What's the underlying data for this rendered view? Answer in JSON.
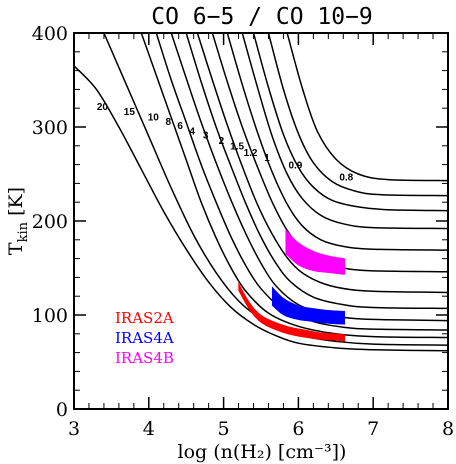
{
  "chart_data": {
    "type": "line",
    "title": "CO 6−5 / CO 10−9",
    "xlabel": "log (n(H₂) [cm⁻³])",
    "ylabel": "T_kin [K]",
    "ylabel_main": "T",
    "ylabel_sub": "kin",
    "ylabel_unit": " [K]",
    "xlim": [
      3,
      8
    ],
    "ylim": [
      0,
      400
    ],
    "xticks": [
      3,
      4,
      5,
      6,
      7,
      8
    ],
    "yticks": [
      0,
      100,
      200,
      300,
      400
    ],
    "grid": false,
    "legend_position": "bottom-left",
    "series": [
      {
        "label": "20",
        "x": [
          3.0,
          3.3,
          3.6,
          3.9,
          4.2,
          4.5,
          4.8,
          5.1,
          5.4,
          5.7,
          6.0,
          6.5,
          7.0,
          8.0
        ],
        "y": [
          365,
          340,
          300,
          255,
          210,
          170,
          135,
          108,
          90,
          78,
          70,
          65,
          63,
          62
        ]
      },
      {
        "label": "15",
        "x": [
          3.4,
          3.7,
          4.0,
          4.3,
          4.6,
          4.9,
          5.2,
          5.5,
          5.8,
          6.1,
          6.5,
          7.0,
          8.0
        ],
        "y": [
          400,
          345,
          290,
          235,
          185,
          145,
          115,
          96,
          84,
          77,
          72,
          69,
          68
        ]
      },
      {
        "label": "10",
        "x": [
          3.9,
          4.1,
          4.3,
          4.5,
          4.7,
          4.9,
          5.1,
          5.3,
          5.6,
          6.0,
          6.5,
          7.0,
          8.0
        ],
        "y": [
          400,
          355,
          310,
          265,
          220,
          182,
          150,
          125,
          102,
          88,
          80,
          77,
          76
        ]
      },
      {
        "label": "8",
        "x": [
          4.1,
          4.3,
          4.5,
          4.7,
          4.9,
          5.1,
          5.3,
          5.5,
          5.8,
          6.2,
          6.6,
          7.0,
          8.0
        ],
        "y": [
          400,
          350,
          305,
          260,
          220,
          183,
          152,
          128,
          106,
          93,
          87,
          85,
          84
        ]
      },
      {
        "label": "6",
        "x": [
          4.3,
          4.5,
          4.7,
          4.9,
          5.1,
          5.3,
          5.5,
          5.7,
          6.0,
          6.4,
          6.8,
          7.2,
          8.0
        ],
        "y": [
          400,
          352,
          305,
          262,
          222,
          186,
          155,
          131,
          111,
          100,
          96,
          95,
          94
        ]
      },
      {
        "label": "4",
        "x": [
          4.5,
          4.7,
          4.9,
          5.1,
          5.3,
          5.5,
          5.7,
          5.9,
          6.2,
          6.6,
          7.0,
          8.0
        ],
        "y": [
          400,
          348,
          300,
          258,
          218,
          183,
          155,
          135,
          119,
          111,
          108,
          107
        ]
      },
      {
        "label": "3",
        "x": [
          4.65,
          4.85,
          5.05,
          5.25,
          5.45,
          5.65,
          5.85,
          6.05,
          6.35,
          6.7,
          7.1,
          8.0
        ],
        "y": [
          400,
          350,
          302,
          258,
          218,
          186,
          161,
          145,
          133,
          127,
          125,
          124
        ]
      },
      {
        "label": "2",
        "x": [
          4.85,
          5.05,
          5.25,
          5.45,
          5.65,
          5.85,
          6.05,
          6.3,
          6.6,
          7.0,
          8.0
        ],
        "y": [
          400,
          348,
          300,
          258,
          220,
          190,
          170,
          157,
          150,
          147,
          146
        ]
      },
      {
        "label": "1.5",
        "x": [
          5.05,
          5.25,
          5.45,
          5.65,
          5.85,
          6.05,
          6.3,
          6.6,
          7.0,
          8.0
        ],
        "y": [
          400,
          345,
          295,
          252,
          218,
          195,
          180,
          173,
          170,
          169
        ]
      },
      {
        "label": "1.2",
        "x": [
          5.25,
          5.45,
          5.65,
          5.85,
          6.05,
          6.3,
          6.6,
          7.0,
          8.0
        ],
        "y": [
          400,
          343,
          290,
          250,
          224,
          206,
          197,
          193,
          192
        ]
      },
      {
        "label": "1",
        "x": [
          5.4,
          5.6,
          5.8,
          6.0,
          6.2,
          6.45,
          6.8,
          7.2,
          8.0
        ],
        "y": [
          400,
          342,
          292,
          257,
          236,
          222,
          215,
          212,
          211
        ]
      },
      {
        "label": "0.9",
        "x": [
          5.6,
          5.8,
          6.0,
          6.2,
          6.45,
          6.75,
          7.1,
          8.0
        ],
        "y": [
          400,
          340,
          293,
          262,
          242,
          232,
          228,
          227
        ]
      },
      {
        "label": "0.8",
        "x": [
          5.85,
          6.05,
          6.25,
          6.5,
          6.8,
          7.2,
          8.0
        ],
        "y": [
          400,
          342,
          296,
          266,
          250,
          244,
          243
        ]
      }
    ],
    "contour_labels": [
      {
        "text": "20",
        "x": 3.38,
        "y": 318
      },
      {
        "text": "15",
        "x": 3.74,
        "y": 313
      },
      {
        "text": "10",
        "x": 4.06,
        "y": 307
      },
      {
        "text": "8",
        "x": 4.26,
        "y": 302
      },
      {
        "text": "6",
        "x": 4.42,
        "y": 298
      },
      {
        "text": "4",
        "x": 4.58,
        "y": 292
      },
      {
        "text": "3",
        "x": 4.76,
        "y": 288
      },
      {
        "text": "2",
        "x": 4.97,
        "y": 282
      },
      {
        "text": "1.5",
        "x": 5.18,
        "y": 276
      },
      {
        "text": "1.2",
        "x": 5.36,
        "y": 269
      },
      {
        "text": "1",
        "x": 5.58,
        "y": 264
      },
      {
        "text": "0.9",
        "x": 5.96,
        "y": 256
      },
      {
        "text": "0.8",
        "x": 6.64,
        "y": 243
      }
    ],
    "regions": [
      {
        "name": "IRAS2A",
        "color": "#ff0000",
        "kind": "band",
        "x": [
          5.2,
          5.35,
          5.5,
          5.7,
          5.9,
          6.1,
          6.3,
          6.5,
          6.62
        ],
        "y_low": [
          126,
          105,
          92,
          84,
          79,
          76,
          74,
          73,
          72
        ],
        "y_high": [
          134,
          113,
          100,
          92,
          87,
          84,
          81,
          80,
          79
        ]
      },
      {
        "name": "IRAS4A",
        "color": "#0000ff",
        "kind": "band",
        "x": [
          5.65,
          5.8,
          6.0,
          6.2,
          6.4,
          6.62
        ],
        "y_low": [
          110,
          100,
          95,
          93,
          91,
          90
        ],
        "y_high": [
          130,
          118,
          110,
          107,
          105,
          104
        ]
      },
      {
        "name": "IRAS4B",
        "color": "#ff00ff",
        "kind": "band",
        "x": [
          5.83,
          6.0,
          6.2,
          6.4,
          6.62
        ],
        "y_low": [
          165,
          153,
          147,
          145,
          143
        ],
        "y_high": [
          191,
          177,
          168,
          163,
          160
        ]
      }
    ]
  }
}
